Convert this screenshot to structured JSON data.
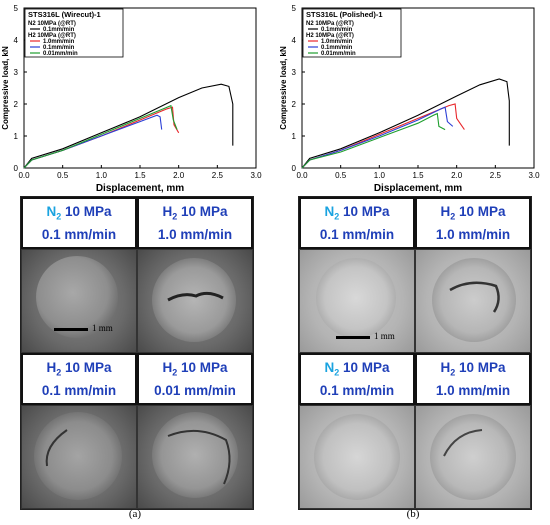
{
  "panels": [
    {
      "caption": "(a)",
      "chart_data": {
        "type": "line",
        "title": "STS316L (Wirecut)-1",
        "xlabel": "Displacement, mm",
        "ylabel": "Compressive load, kN",
        "xlim": [
          0.0,
          3.0
        ],
        "ylim": [
          0,
          5
        ],
        "xticks": [
          "0.0",
          "0.5",
          "1.0",
          "1.5",
          "2.0",
          "2.5",
          "3.0"
        ],
        "yticks": [
          "0",
          "1",
          "2",
          "3",
          "4",
          "5"
        ],
        "legend": {
          "placement": "top-left",
          "group1": "N2 10MPa (@RT)",
          "group2": "H2 10MPa (@RT)"
        },
        "series": [
          {
            "name": "0.1mm/min",
            "group": "N2",
            "color": "#000000",
            "points": [
              [
                0,
                0
              ],
              [
                0.1,
                0.3
              ],
              [
                0.5,
                0.6
              ],
              [
                1.0,
                1.1
              ],
              [
                1.5,
                1.6
              ],
              [
                2.0,
                2.2
              ],
              [
                2.3,
                2.5
              ],
              [
                2.55,
                2.62
              ],
              [
                2.65,
                2.55
              ],
              [
                2.7,
                2.0
              ],
              [
                2.7,
                0.7
              ]
            ]
          },
          {
            "name": "1.0mm/min",
            "group": "H2",
            "color": "#e8262b",
            "points": [
              [
                0,
                0
              ],
              [
                0.1,
                0.25
              ],
              [
                0.5,
                0.55
              ],
              [
                1.0,
                1.0
              ],
              [
                1.5,
                1.5
              ],
              [
                1.85,
                1.85
              ],
              [
                1.92,
                1.9
              ],
              [
                1.94,
                1.35
              ],
              [
                2.0,
                1.1
              ]
            ]
          },
          {
            "name": "0.1mm/min",
            "group": "H2",
            "color": "#2b3fd6",
            "points": [
              [
                0,
                0
              ],
              [
                0.1,
                0.25
              ],
              [
                0.5,
                0.55
              ],
              [
                1.0,
                1.0
              ],
              [
                1.5,
                1.45
              ],
              [
                1.72,
                1.65
              ],
              [
                1.76,
                1.6
              ],
              [
                1.78,
                1.2
              ]
            ]
          },
          {
            "name": "0.01mm/min",
            "group": "H2",
            "color": "#1e9e2e",
            "points": [
              [
                0,
                0
              ],
              [
                0.1,
                0.25
              ],
              [
                0.5,
                0.55
              ],
              [
                1.0,
                1.05
              ],
              [
                1.5,
                1.55
              ],
              [
                1.85,
                1.9
              ],
              [
                1.9,
                1.95
              ],
              [
                1.93,
                1.5
              ],
              [
                1.98,
                1.2
              ]
            ]
          }
        ]
      },
      "cells": [
        {
          "gas": "N",
          "sub": "2",
          "pressure": " 10 MPa",
          "rate": "0.1 mm/min",
          "kind": "n2"
        },
        {
          "gas": "H",
          "sub": "2",
          "pressure": " 10 MPa",
          "rate": "1.0 mm/min",
          "kind": "h2"
        },
        {
          "gas": "H",
          "sub": "2",
          "pressure": " 10 MPa",
          "rate": "0.1 mm/min",
          "kind": "h2"
        },
        {
          "gas": "H",
          "sub": "2",
          "pressure": " 10 MPa",
          "rate": "0.01  mm/min",
          "kind": "h2"
        }
      ],
      "scale_label": "1 mm"
    },
    {
      "caption": "(b)",
      "chart_data": {
        "type": "line",
        "title": "STS316L (Polished)-1",
        "xlabel": "Displacement, mm",
        "ylabel": "Compressive load, kN",
        "xlim": [
          0.0,
          3.0
        ],
        "ylim": [
          0,
          5
        ],
        "xticks": [
          "0.0",
          "0.5",
          "1.0",
          "1.5",
          "2.0",
          "2.5",
          "3.0"
        ],
        "yticks": [
          "0",
          "1",
          "2",
          "3",
          "4",
          "5"
        ],
        "legend": {
          "placement": "top-left",
          "group1": "N2 10MPa (@RT)",
          "group2": "H2 10MPa (@RT)"
        },
        "series": [
          {
            "name": "0.1mm/min",
            "group": "N2",
            "color": "#000000",
            "points": [
              [
                0,
                0
              ],
              [
                0.1,
                0.3
              ],
              [
                0.5,
                0.6
              ],
              [
                1.0,
                1.1
              ],
              [
                1.5,
                1.65
              ],
              [
                2.0,
                2.25
              ],
              [
                2.3,
                2.6
              ],
              [
                2.55,
                2.78
              ],
              [
                2.65,
                2.7
              ],
              [
                2.68,
                2.1
              ],
              [
                2.68,
                0.7
              ]
            ]
          },
          {
            "name": "1.0mm/min",
            "group": "H2",
            "color": "#e8262b",
            "points": [
              [
                0,
                0
              ],
              [
                0.1,
                0.25
              ],
              [
                0.5,
                0.55
              ],
              [
                1.0,
                1.05
              ],
              [
                1.5,
                1.55
              ],
              [
                1.9,
                1.95
              ],
              [
                1.98,
                2.0
              ],
              [
                2.0,
                1.55
              ],
              [
                2.1,
                1.2
              ]
            ]
          },
          {
            "name": "0.1mm/min",
            "group": "H2",
            "color": "#2b3fd6",
            "points": [
              [
                0,
                0
              ],
              [
                0.1,
                0.25
              ],
              [
                0.5,
                0.55
              ],
              [
                1.0,
                1.0
              ],
              [
                1.5,
                1.5
              ],
              [
                1.8,
                1.85
              ],
              [
                1.85,
                1.9
              ],
              [
                1.88,
                1.45
              ],
              [
                1.95,
                1.3
              ]
            ]
          },
          {
            "name": "0.01mm/min",
            "group": "H2",
            "color": "#1e9e2e",
            "points": [
              [
                0,
                0
              ],
              [
                0.1,
                0.25
              ],
              [
                0.5,
                0.5
              ],
              [
                1.0,
                0.95
              ],
              [
                1.5,
                1.4
              ],
              [
                1.7,
                1.65
              ],
              [
                1.75,
                1.7
              ],
              [
                1.77,
                1.3
              ],
              [
                1.85,
                1.2
              ]
            ]
          }
        ]
      },
      "cells": [
        {
          "gas": "N",
          "sub": "2",
          "pressure": " 10 MPa",
          "rate": "0.1 mm/min",
          "kind": "n2"
        },
        {
          "gas": "H",
          "sub": "2",
          "pressure": " 10 MPa",
          "rate": "1.0 mm/min",
          "kind": "h2"
        },
        {
          "gas": "N",
          "sub": "2",
          "pressure": " 10 MPa",
          "rate": "0.1 mm/min",
          "kind": "n2"
        },
        {
          "gas": "H",
          "sub": "2",
          "pressure": " 10 MPa",
          "rate": "1.0 mm/min",
          "kind": "h2"
        }
      ],
      "scale_label": "1 mm"
    }
  ]
}
